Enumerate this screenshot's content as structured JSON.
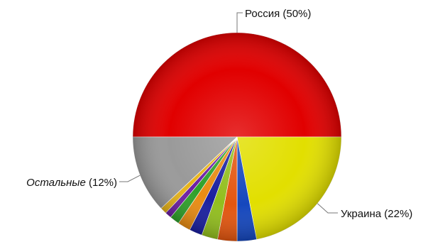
{
  "chart_data": {
    "type": "pie",
    "title": "",
    "start_angle_deg": 180,
    "direction": "clockwise",
    "slices": [
      {
        "name": "Россия",
        "name_italic": false,
        "percent_label": "(50%)",
        "value": 50,
        "color": "#e10000"
      },
      {
        "name": "Украина",
        "name_italic": false,
        "percent_label": "(22%)",
        "value": 22,
        "color": "#e2df00"
      },
      {
        "name": "",
        "value": 3,
        "color": "#1547bd"
      },
      {
        "name": "",
        "value": 3,
        "color": "#e3560f"
      },
      {
        "name": "",
        "value": 2.5,
        "color": "#92be1e"
      },
      {
        "name": "",
        "value": 2,
        "color": "#1a1fa0"
      },
      {
        "name": "",
        "value": 2,
        "color": "#e98c13"
      },
      {
        "name": "",
        "value": 1.5,
        "color": "#2fa12a"
      },
      {
        "name": "",
        "value": 1,
        "color": "#6d1fa3"
      },
      {
        "name": "",
        "value": 1,
        "color": "#e8b41a"
      },
      {
        "name": "Остальные",
        "name_italic": true,
        "percent_label": "(12%)",
        "value": 12,
        "color": "#9a9a9a"
      }
    ],
    "labeled": [
      {
        "slice": 0,
        "anchor": "top"
      },
      {
        "slice": 1,
        "anchor": "right"
      },
      {
        "slice": 10,
        "anchor": "left"
      }
    ]
  }
}
